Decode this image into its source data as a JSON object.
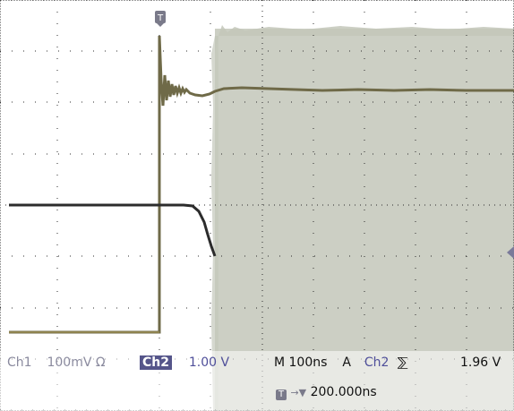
{
  "status": {
    "ch1_label": "Ch1",
    "ch1_scale": "100mV",
    "ch1_coupling": "Ω",
    "ch2_label": "Ch2",
    "ch2_scale": "1.00 V",
    "timebase": "M 100ns",
    "trigger_mode": "A",
    "trigger_source": "Ch2",
    "trigger_slope_icon": "rising-edge-icon",
    "trigger_level": "1.96 V",
    "trigger_position": "200.000ns",
    "trigger_marker": "T"
  },
  "colors": {
    "background": "#ffffff",
    "grid": "#2a2a2a",
    "ch1_trace": "#6f6a48",
    "ch2_trace": "#2c2c2c",
    "noise": "#c3c7ba",
    "ch2_box": "#55558a"
  }
}
